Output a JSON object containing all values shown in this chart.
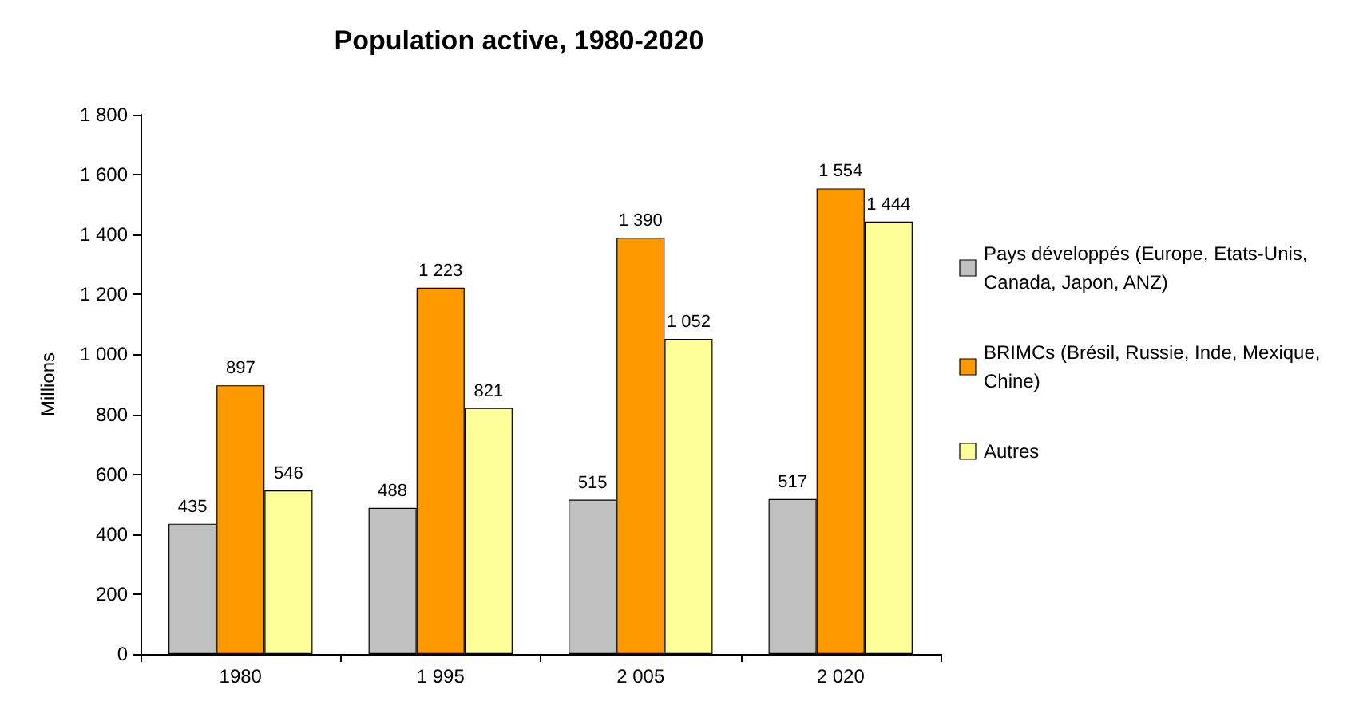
{
  "chart_data": {
    "type": "bar",
    "title": "Population active, 1980-2020",
    "ylabel": "Millions",
    "categories": [
      "1980",
      "1 995",
      "2 005",
      "2 020"
    ],
    "series": [
      {
        "name": "Pays développés (Europe, Etats-Unis, Canada, Japon, ANZ)",
        "color": "#c0c0c0",
        "values": [
          435,
          488,
          515,
          517
        ],
        "value_labels": [
          "435",
          "488",
          "515",
          "517"
        ]
      },
      {
        "name": "BRIMCs (Brésil, Russie, Inde, Mexique, Chine)",
        "color": "#ff9900",
        "values": [
          897,
          1223,
          1390,
          1554
        ],
        "value_labels": [
          "897",
          "1 223",
          "1 390",
          "1 554"
        ]
      },
      {
        "name": "Autres",
        "color": "#ffff99",
        "values": [
          546,
          821,
          1052,
          1444
        ],
        "value_labels": [
          "546",
          "821",
          "1 052",
          "1 444"
        ]
      }
    ],
    "ylim": [
      0,
      1800
    ],
    "yticks": [
      0,
      {
        "value": 200,
        "label": "200"
      },
      400,
      600,
      800,
      {
        "value": 1000,
        "label": "1 000"
      },
      {
        "value": 1200,
        "label": "1 200"
      },
      {
        "value": 1400,
        "label": "1 400"
      },
      {
        "value": 1600,
        "label": "1 600"
      },
      {
        "value": 1800,
        "label": "1 800"
      }
    ],
    "grid": false,
    "legend": "right"
  }
}
